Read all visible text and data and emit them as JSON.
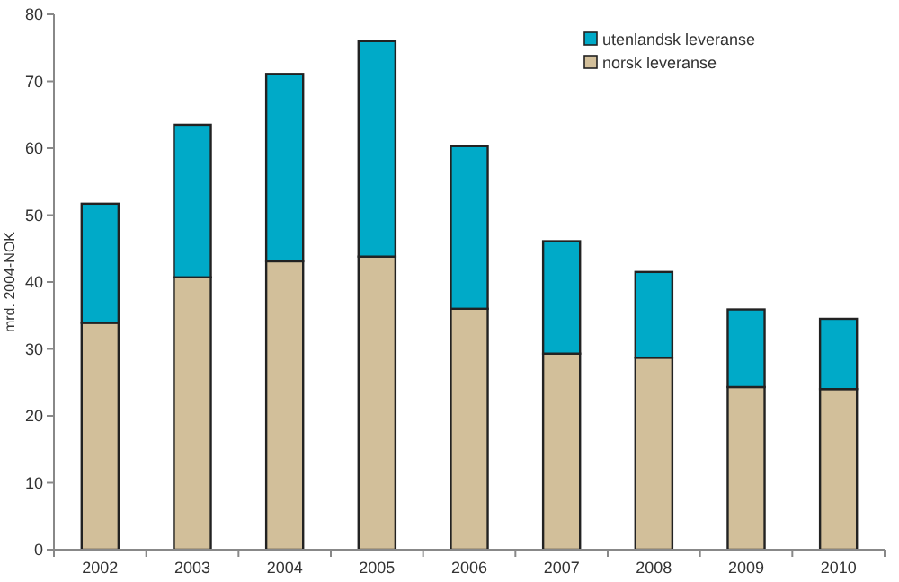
{
  "chart_data": {
    "type": "bar",
    "stacked": true,
    "ylabel": "mrd. 2004-NOK",
    "categories": [
      "2002",
      "2003",
      "2004",
      "2005",
      "2006",
      "2007",
      "2008",
      "2009",
      "2010"
    ],
    "series": [
      {
        "name": "norsk leveranse",
        "color": "#d2bf9a",
        "values": [
          33.9,
          40.7,
          43.1,
          43.8,
          36.0,
          29.3,
          28.7,
          24.3,
          24.0
        ]
      },
      {
        "name": "utenlandsk leveranse",
        "color": "#00aac8",
        "values": [
          17.8,
          22.8,
          28.0,
          32.2,
          24.3,
          16.8,
          12.8,
          11.6,
          10.5
        ]
      }
    ],
    "ylim": [
      0,
      80
    ],
    "yticks": [
      0,
      10,
      20,
      30,
      40,
      50,
      60,
      70,
      80
    ],
    "grid": false,
    "legend": "top right"
  }
}
